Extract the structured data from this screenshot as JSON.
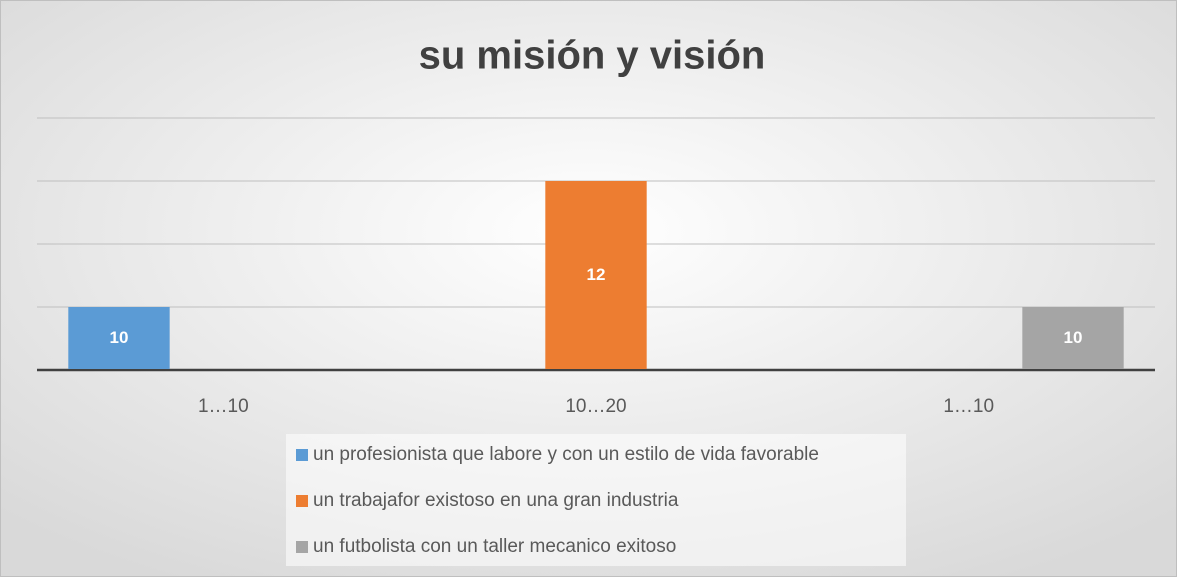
{
  "chart_data": {
    "type": "bar",
    "title": "su misión y visión",
    "categories": [
      "1…10",
      "10…20",
      "1…10"
    ],
    "series": [
      {
        "name": "un profesionista que labore y con un estilo de vida favorable",
        "color": "#5b9bd5",
        "values": [
          10,
          null,
          null
        ]
      },
      {
        "name": "un trabajafor existoso en una gran industria",
        "color": "#ed7d31",
        "values": [
          null,
          12,
          null
        ]
      },
      {
        "name": "un futbolista con un taller mecanico exitoso",
        "color": "#a5a5a5",
        "values": [
          null,
          null,
          10
        ]
      }
    ],
    "ylim": [
      9,
      13
    ],
    "yticks": [
      9,
      10,
      11,
      12,
      13
    ],
    "grid": true,
    "data_labels": true,
    "legend": "bottom"
  }
}
